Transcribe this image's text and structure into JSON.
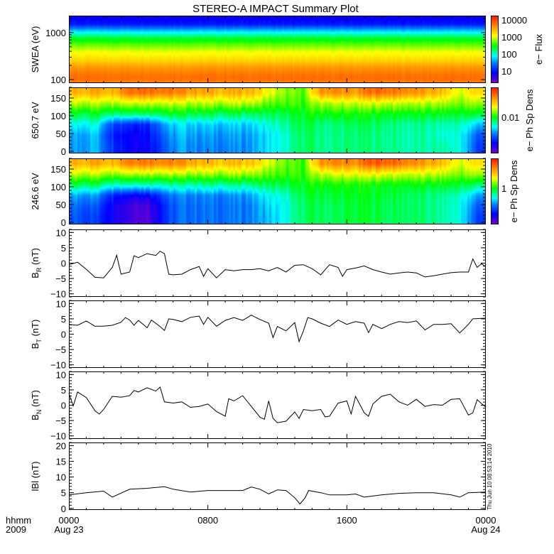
{
  "title": "STEREO-A IMPACT Summary Plot",
  "footer": {
    "time_unit_label": "hhmm",
    "year_label": "2009",
    "timestamp": "Thu Jun 10 08:53:14 2010"
  },
  "chart_data": {
    "type": "multi-panel time series with spectrograms",
    "title": "STEREO-A IMPACT Summary Plot",
    "x": {
      "unit": "hours since 2009-08-23 0000",
      "range": [
        0,
        24
      ],
      "tick_hours": [
        0,
        8,
        16,
        24
      ],
      "tick_labels": [
        "0000",
        "0800",
        "1600",
        "0000"
      ],
      "date_labels": [
        "Aug 23",
        "",
        "",
        "Aug 24"
      ]
    },
    "panels": [
      {
        "id": "swea",
        "type": "heatmap",
        "ylabel": "SWEA (eV)",
        "yscale": "log",
        "ylim": [
          84,
          2300
        ],
        "yticks": [
          100,
          1000
        ],
        "ytick_labels": [
          "100",
          "1000"
        ],
        "energy_eV": [
          84,
          100,
          120,
          180,
          250,
          400,
          600,
          800,
          1100,
          1500,
          2300
        ],
        "log_flux": [
          3.7,
          3.8,
          3.8,
          3.6,
          3.3,
          3.0,
          2.6,
          2.3,
          1.7,
          1.0,
          0.8
        ],
        "colorbar": {
          "label": "e− Flux",
          "scale": "log",
          "range_log10": [
            0.3,
            4.25
          ],
          "tick_values": [
            10,
            100,
            1000,
            10000
          ],
          "tick_labels": [
            "10",
            "100",
            "1000",
            "10000"
          ]
        }
      },
      {
        "id": "pad650",
        "type": "heatmap",
        "ylabel": "650.7 eV",
        "ylim": [
          -6,
          180
        ],
        "yticks": [
          0,
          50,
          100,
          150
        ],
        "ytick_labels": [
          "0",
          "50",
          "100",
          "150"
        ],
        "pitch_bins_deg": [
          15,
          45,
          75,
          105,
          135,
          165
        ],
        "hour_bins": "0.5 to 23.5 step 1",
        "levels": [
          [
            0.32,
            0.35,
            0.22,
            0.15,
            0.15,
            0.25,
            0.33,
            0.3,
            0.3,
            0.3,
            0.32,
            0.38,
            0.42,
            0.5,
            0.47,
            0.47,
            0.48,
            0.48,
            0.47,
            0.45,
            0.45,
            0.45,
            0.42,
            0.22
          ],
          [
            0.33,
            0.36,
            0.2,
            0.15,
            0.16,
            0.28,
            0.35,
            0.32,
            0.32,
            0.32,
            0.33,
            0.38,
            0.42,
            0.5,
            0.47,
            0.47,
            0.48,
            0.48,
            0.47,
            0.45,
            0.45,
            0.42,
            0.42,
            0.25
          ],
          [
            0.4,
            0.42,
            0.25,
            0.2,
            0.2,
            0.33,
            0.38,
            0.36,
            0.36,
            0.36,
            0.37,
            0.42,
            0.45,
            0.52,
            0.48,
            0.48,
            0.5,
            0.5,
            0.48,
            0.46,
            0.46,
            0.44,
            0.45,
            0.35
          ],
          [
            0.52,
            0.53,
            0.5,
            0.5,
            0.5,
            0.52,
            0.52,
            0.52,
            0.5,
            0.5,
            0.5,
            0.5,
            0.5,
            0.54,
            0.55,
            0.55,
            0.55,
            0.55,
            0.54,
            0.54,
            0.53,
            0.53,
            0.53,
            0.52
          ],
          [
            0.66,
            0.66,
            0.66,
            0.68,
            0.68,
            0.67,
            0.66,
            0.66,
            0.65,
            0.66,
            0.66,
            0.6,
            0.58,
            0.58,
            0.65,
            0.66,
            0.66,
            0.68,
            0.67,
            0.66,
            0.65,
            0.65,
            0.62,
            0.64
          ],
          [
            0.8,
            0.82,
            0.8,
            0.9,
            0.9,
            0.88,
            0.85,
            0.82,
            0.8,
            0.8,
            0.8,
            0.7,
            0.62,
            0.6,
            0.84,
            0.85,
            0.82,
            0.9,
            0.88,
            0.85,
            0.82,
            0.78,
            0.68,
            0.75
          ]
        ],
        "colorbar": {
          "label": "e− Ph Sp Dens",
          "tick_labels": [
            "0.01"
          ],
          "tick_levels": [
            0.55
          ]
        }
      },
      {
        "id": "pad246",
        "type": "heatmap",
        "ylabel": "246.6 eV",
        "ylim": [
          -6,
          180
        ],
        "yticks": [
          0,
          50,
          100,
          150
        ],
        "ytick_labels": [
          "0",
          "50",
          "100",
          "150"
        ],
        "pitch_bins_deg": [
          15,
          45,
          75,
          105,
          135,
          165
        ],
        "hour_bins": "0.5 to 23.5 step 1",
        "levels": [
          [
            0.25,
            0.22,
            0.15,
            0.08,
            0.05,
            0.2,
            0.28,
            0.28,
            0.28,
            0.28,
            0.3,
            0.35,
            0.4,
            0.5,
            0.5,
            0.5,
            0.52,
            0.52,
            0.5,
            0.5,
            0.48,
            0.45,
            0.42,
            0.22
          ],
          [
            0.27,
            0.25,
            0.15,
            0.08,
            0.06,
            0.2,
            0.28,
            0.28,
            0.28,
            0.28,
            0.3,
            0.37,
            0.4,
            0.5,
            0.5,
            0.5,
            0.52,
            0.52,
            0.5,
            0.5,
            0.48,
            0.45,
            0.42,
            0.25
          ],
          [
            0.33,
            0.32,
            0.2,
            0.15,
            0.15,
            0.25,
            0.3,
            0.3,
            0.3,
            0.3,
            0.33,
            0.4,
            0.42,
            0.52,
            0.52,
            0.52,
            0.53,
            0.53,
            0.52,
            0.5,
            0.48,
            0.46,
            0.44,
            0.32
          ],
          [
            0.5,
            0.5,
            0.45,
            0.45,
            0.45,
            0.45,
            0.45,
            0.46,
            0.46,
            0.46,
            0.47,
            0.5,
            0.5,
            0.54,
            0.55,
            0.55,
            0.55,
            0.55,
            0.54,
            0.54,
            0.53,
            0.53,
            0.52,
            0.48
          ],
          [
            0.66,
            0.66,
            0.64,
            0.66,
            0.66,
            0.65,
            0.64,
            0.64,
            0.63,
            0.64,
            0.64,
            0.6,
            0.57,
            0.58,
            0.66,
            0.68,
            0.68,
            0.7,
            0.68,
            0.67,
            0.66,
            0.65,
            0.62,
            0.64
          ],
          [
            0.8,
            0.82,
            0.8,
            0.88,
            0.88,
            0.86,
            0.84,
            0.8,
            0.78,
            0.78,
            0.78,
            0.68,
            0.6,
            0.58,
            0.84,
            0.86,
            0.84,
            0.92,
            0.9,
            0.86,
            0.82,
            0.78,
            0.68,
            0.74
          ]
        ],
        "colorbar": {
          "label": "e− Ph Sp Dens",
          "tick_labels": [
            "1"
          ],
          "tick_levels": [
            0.55
          ]
        }
      },
      {
        "id": "br",
        "type": "line",
        "ylabel": {
          "base": "B",
          "sub": "R",
          "unit": "(nT)"
        },
        "ylim": [
          -11,
          11
        ],
        "yticks": [
          -10,
          -5,
          0,
          5,
          10
        ],
        "ytick_labels": [
          "−10",
          "−5",
          "0",
          "5",
          "10"
        ],
        "t": [
          0,
          0.5,
          1,
          1.5,
          2,
          2.5,
          2.75,
          3,
          3.5,
          3.75,
          4,
          4.5,
          5,
          5.25,
          5.5,
          5.75,
          6,
          6.5,
          7,
          7.5,
          7.75,
          8,
          8.5,
          9,
          9.5,
          10,
          10.5,
          11,
          11.5,
          12,
          12.5,
          13,
          13.5,
          14,
          14.5,
          15,
          15.5,
          15.75,
          16,
          16.5,
          17,
          17.5,
          18,
          18.5,
          19,
          19.5,
          20,
          20.5,
          21,
          21.5,
          22,
          22.5,
          23,
          23.25,
          23.5,
          23.75,
          24
        ],
        "values": [
          -0.5,
          0.3,
          -2,
          -4.6,
          -4.8,
          -1.4,
          2.6,
          -3.6,
          -2.9,
          2.4,
          1.8,
          3.1,
          2.5,
          3.9,
          3.1,
          -3.6,
          -3.8,
          -3.6,
          -2.1,
          -1.1,
          -4.3,
          -1.8,
          -4.8,
          -2.1,
          -2.5,
          -2.1,
          -2.1,
          -1.8,
          -2.5,
          -1.4,
          -2.9,
          -0.7,
          -0.5,
          -1.8,
          -3.8,
          -0.5,
          -1.4,
          -4.3,
          -2.1,
          -1.6,
          -0.9,
          -2.1,
          -2.9,
          -3.6,
          -3.2,
          -2.9,
          -3.2,
          -4.5,
          -4.1,
          -3.6,
          -3.1,
          -2.9,
          -2.9,
          1.4,
          -1.4,
          -0.2,
          -1.1
        ]
      },
      {
        "id": "bt",
        "type": "line",
        "ylabel": {
          "base": "B",
          "sub": "T",
          "unit": "(nT)"
        },
        "ylim": [
          -11,
          11
        ],
        "yticks": [
          -10,
          -5,
          0,
          5,
          10
        ],
        "ytick_labels": [
          "−10",
          "−5",
          "0",
          "5",
          "10"
        ],
        "t": [
          0,
          0.5,
          1,
          1.5,
          2,
          2.5,
          3,
          3.25,
          3.5,
          3.75,
          4,
          4.5,
          4.75,
          5.25,
          5.5,
          5.75,
          6,
          6.5,
          7,
          7.5,
          7.75,
          8,
          8.5,
          9,
          9.5,
          10,
          10.5,
          11,
          11.5,
          11.75,
          12,
          12.5,
          13,
          13.25,
          13.5,
          13.75,
          14,
          14.5,
          15,
          15.5,
          16,
          16.5,
          17,
          17.25,
          17.5,
          18,
          18.5,
          19,
          19.5,
          20,
          20.5,
          21,
          21.5,
          22,
          22.5,
          23,
          23.25,
          24
        ],
        "values": [
          3.2,
          2.9,
          4.3,
          2.6,
          2.6,
          2.9,
          3.9,
          5.4,
          4.6,
          2.9,
          4.5,
          2.1,
          4.6,
          2.5,
          1.2,
          5,
          4.8,
          4.1,
          5.5,
          5.9,
          3.2,
          5.5,
          2.6,
          4.5,
          5.4,
          4.5,
          6.2,
          4.8,
          3.6,
          -1.1,
          2.5,
          1.1,
          3.8,
          -2.4,
          1.1,
          5.4,
          5,
          3.6,
          2.5,
          4.6,
          3.2,
          4.1,
          3.6,
          0.5,
          3.2,
          1.8,
          3.2,
          4.1,
          3.8,
          4.3,
          1.4,
          3.2,
          3.2,
          3.4,
          0.4,
          3.2,
          5,
          5.2
        ]
      },
      {
        "id": "bn",
        "type": "line",
        "ylabel": {
          "base": "B",
          "sub": "N",
          "unit": "(nT)"
        },
        "ylim": [
          -11,
          11
        ],
        "yticks": [
          -10,
          -5,
          0,
          5,
          10
        ],
        "ytick_labels": [
          "−10",
          "−5",
          "0",
          "5",
          "10"
        ],
        "t": [
          0,
          0.25,
          0.5,
          1,
          1.5,
          1.75,
          2,
          2.5,
          3,
          3.5,
          3.75,
          4,
          4.5,
          5,
          5.25,
          5.5,
          6,
          6.5,
          7,
          7.5,
          8,
          8.5,
          9,
          9.2,
          9.5,
          10,
          10.5,
          11,
          11.25,
          11.5,
          11.75,
          12,
          12.5,
          13,
          13.25,
          13.5,
          14,
          14.5,
          14.75,
          15,
          15.5,
          16,
          16.25,
          16.5,
          17,
          17.25,
          17.5,
          18,
          18.5,
          19,
          19.5,
          20,
          20.5,
          21,
          21.5,
          22,
          22.5,
          23,
          23.25,
          23.5,
          24
        ],
        "values": [
          3.9,
          -0.2,
          4.3,
          2.5,
          -1.8,
          -2.9,
          -1.4,
          2.9,
          2.6,
          3.1,
          4.8,
          4.3,
          5.7,
          4.6,
          5.9,
          1.1,
          0.7,
          1.1,
          -0.7,
          -0.4,
          0.4,
          -2.1,
          -3.6,
          2.1,
          1.4,
          3.1,
          -0.4,
          -3.9,
          -4.6,
          1.4,
          -4.3,
          -5.7,
          -5.2,
          -2.2,
          -4.3,
          -1.4,
          -1.8,
          -1.4,
          -3.8,
          -3.6,
          0.7,
          1.4,
          -2.9,
          2.9,
          -2.5,
          -3.6,
          0.4,
          2.9,
          3.6,
          1.1,
          0,
          1.9,
          -0.4,
          0.2,
          0,
          1.9,
          2.1,
          -3.2,
          -2.5,
          1.8,
          -0.7
        ]
      },
      {
        "id": "bmag",
        "type": "line",
        "ylabel": {
          "base": "lBl",
          "sub": "",
          "unit": "(nT)"
        },
        "ylim": [
          -0.5,
          21
        ],
        "yticks": [
          0,
          5,
          10,
          15,
          20
        ],
        "ytick_labels": [
          "0",
          "5",
          "10",
          "15",
          "20"
        ],
        "t": [
          0,
          1,
          2,
          2.5,
          3.5,
          4.5,
          5.5,
          6,
          7,
          8,
          9,
          10,
          10.5,
          11,
          11.5,
          12,
          12.5,
          13,
          13.3,
          13.6,
          13.8,
          14.5,
          15,
          16,
          16.5,
          17,
          18,
          19,
          20,
          21,
          22,
          22.5,
          23,
          24
        ],
        "values": [
          4.3,
          5,
          5.5,
          3.6,
          6.1,
          6.4,
          6.9,
          6.1,
          5.2,
          5.7,
          5.7,
          5.7,
          6.8,
          6.1,
          4.6,
          5.9,
          5.7,
          3.4,
          1.4,
          3.4,
          5.7,
          5,
          4.3,
          4.3,
          4.6,
          3.6,
          4.3,
          4.8,
          5,
          5,
          4.3,
          3.6,
          5,
          5.2
        ]
      }
    ]
  }
}
